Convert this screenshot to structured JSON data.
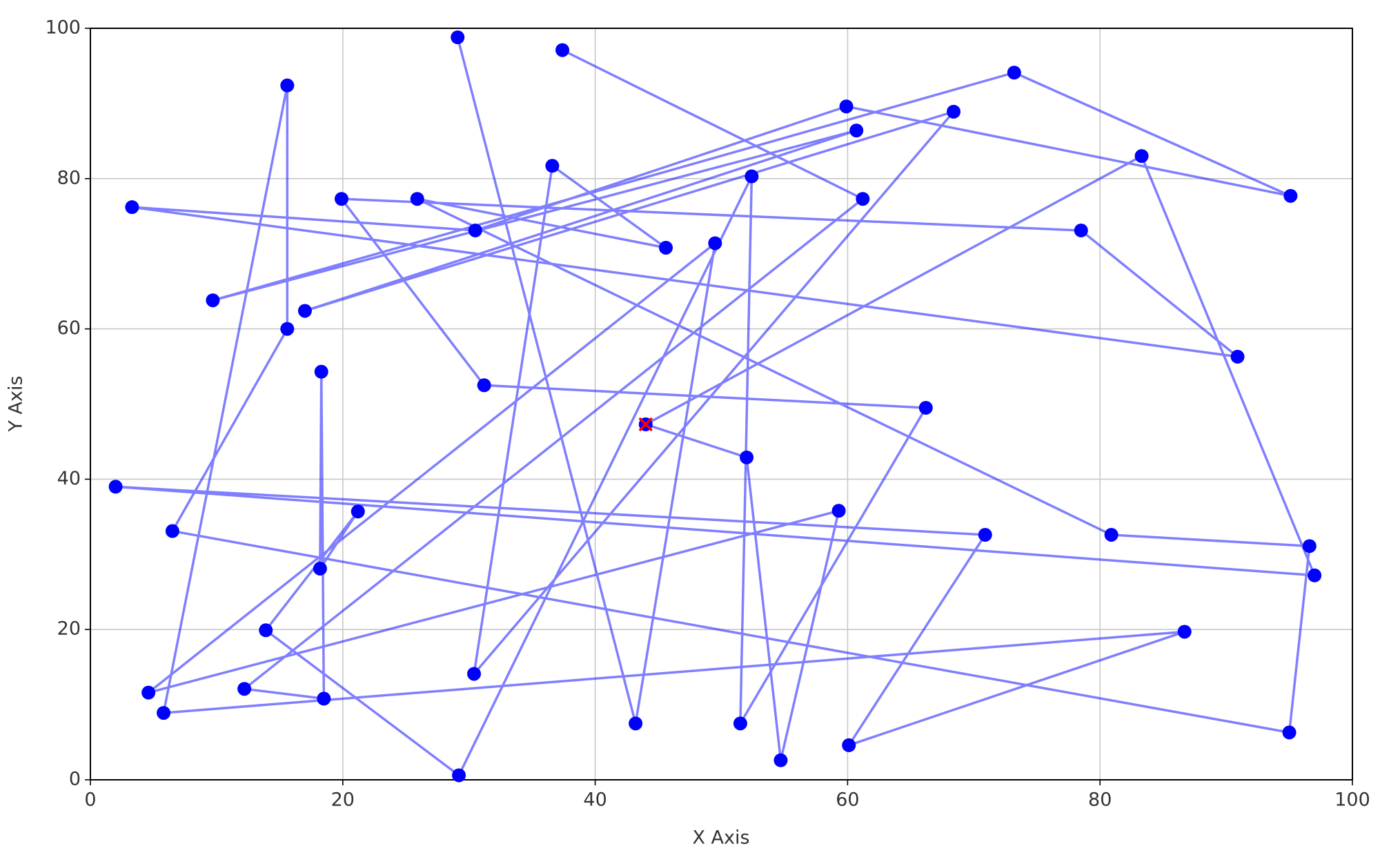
{
  "chart_data": {
    "type": "line",
    "xlabel": "X Axis",
    "ylabel": "Y Axis",
    "xlim": [
      0,
      100
    ],
    "ylim": [
      0,
      100
    ],
    "xticks": [
      0,
      20,
      40,
      60,
      80,
      100
    ],
    "yticks": [
      0,
      20,
      40,
      60,
      80,
      100
    ],
    "grid": true,
    "series": [
      {
        "color": "#0000ff",
        "marker": "o",
        "x": [
          29.1,
          43.2,
          49.5,
          4.6,
          59.3,
          54.7,
          52.0,
          44.0,
          83.3,
          97.0,
          2.0,
          70.9,
          60.1,
          86.7,
          5.8,
          15.6,
          15.6,
          6.5,
          95.0,
          96.6,
          80.9,
          25.9,
          45.6,
          36.6,
          30.4,
          68.4,
          17.0,
          60.7,
          9.7,
          73.2,
          95.1,
          59.9,
          30.5,
          3.3,
          90.9,
          78.5,
          19.9,
          31.2,
          66.2,
          51.5,
          52.4,
          29.2,
          13.9,
          21.2,
          18.2,
          18.3,
          18.5,
          12.2,
          61.2,
          37.4
        ],
        "y": [
          98.8,
          7.5,
          71.4,
          11.6,
          35.8,
          2.6,
          42.9,
          47.3,
          83.0,
          27.2,
          39.0,
          32.6,
          4.6,
          19.7,
          8.9,
          92.4,
          60.0,
          33.1,
          6.3,
          31.1,
          32.6,
          77.3,
          70.8,
          81.7,
          14.1,
          88.9,
          62.4,
          86.4,
          63.8,
          94.1,
          77.7,
          89.6,
          73.1,
          76.2,
          56.3,
          73.1,
          77.3,
          52.5,
          49.5,
          7.5,
          80.3,
          0.6,
          19.9,
          35.7,
          28.1,
          54.3,
          10.8,
          12.1,
          77.3,
          97.1
        ]
      },
      {
        "color": "#ff0000",
        "marker": "x",
        "x": [
          44.0
        ],
        "y": [
          47.3
        ]
      }
    ]
  }
}
